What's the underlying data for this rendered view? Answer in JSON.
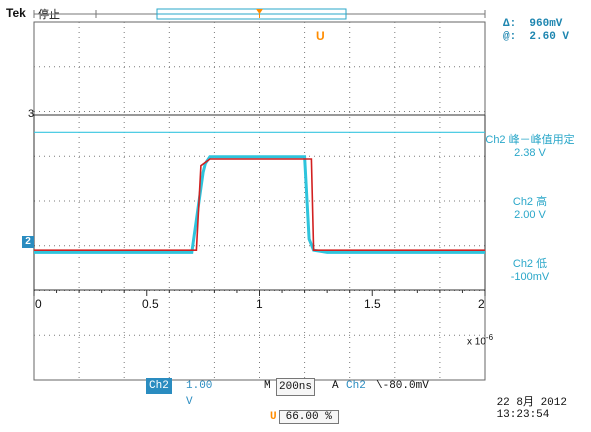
{
  "header": {
    "brand": "Tek",
    "status": "停止"
  },
  "cursor_readout": {
    "delta_label": "Δ:",
    "delta_value": "960mV",
    "at_label": "@:",
    "at_value": "2.60 V"
  },
  "measurements": [
    {
      "line1": "Ch2 峰－峰值用定",
      "line2": "2.38 V"
    },
    {
      "line1": "Ch2 高",
      "line2": "2.00 V"
    },
    {
      "line1": "Ch2 低",
      "line2": "-100mV"
    }
  ],
  "markers": {
    "ch_ref": "2",
    "cursor_level": "3",
    "trigger_symbol": "U"
  },
  "xaxis": {
    "ticks": [
      "0",
      "0.5",
      "1",
      "1.5",
      "2"
    ],
    "multiplier": "x 10",
    "exponent": "-6"
  },
  "bottom_bar": {
    "channel": "Ch2",
    "volts_div": "1.00 V",
    "time_prefix": "M",
    "time_div": "200ns",
    "trigger_prefix": "A",
    "trigger_channel": "Ch2",
    "trigger_level": "\\-80.0mV"
  },
  "datetime": {
    "date": "22 8月 2012",
    "time": "13:23:54"
  },
  "trigger_position": {
    "badge": "U",
    "value": "66.00 %"
  },
  "colors": {
    "grid_dots": "#7a7a7a",
    "scope_trace": "#2ec4dc",
    "math_trace": "#d22020",
    "cursor_line": "#38c6e0",
    "accent": "#2a8cc0",
    "trigger": "#ff8c00"
  },
  "chart_data": {
    "type": "line",
    "xlabel": "",
    "ylabel": "",
    "xlim": [
      0,
      2
    ],
    "ylim": [
      -1,
      3
    ],
    "x_scale": "x 10^-6",
    "grid": true,
    "series": [
      {
        "x": [
          0,
          0.7,
          0.75,
          0.76,
          0.78,
          1.0,
          1.2,
          1.22,
          1.24,
          1.3,
          2.0
        ],
        "y": [
          -0.1,
          -0.1,
          1.7,
          1.9,
          2.05,
          2.05,
          2.05,
          0.2,
          -0.05,
          -0.1,
          -0.1
        ]
      },
      {
        "x": [
          0,
          0.72,
          0.74,
          0.78,
          1.0,
          1.23,
          1.24,
          1.3,
          2.0
        ],
        "y": [
          -0.05,
          -0.05,
          1.85,
          2.0,
          2.0,
          2.0,
          -0.05,
          -0.05,
          -0.05
        ]
      }
    ],
    "cursor_level": 2.6
  }
}
